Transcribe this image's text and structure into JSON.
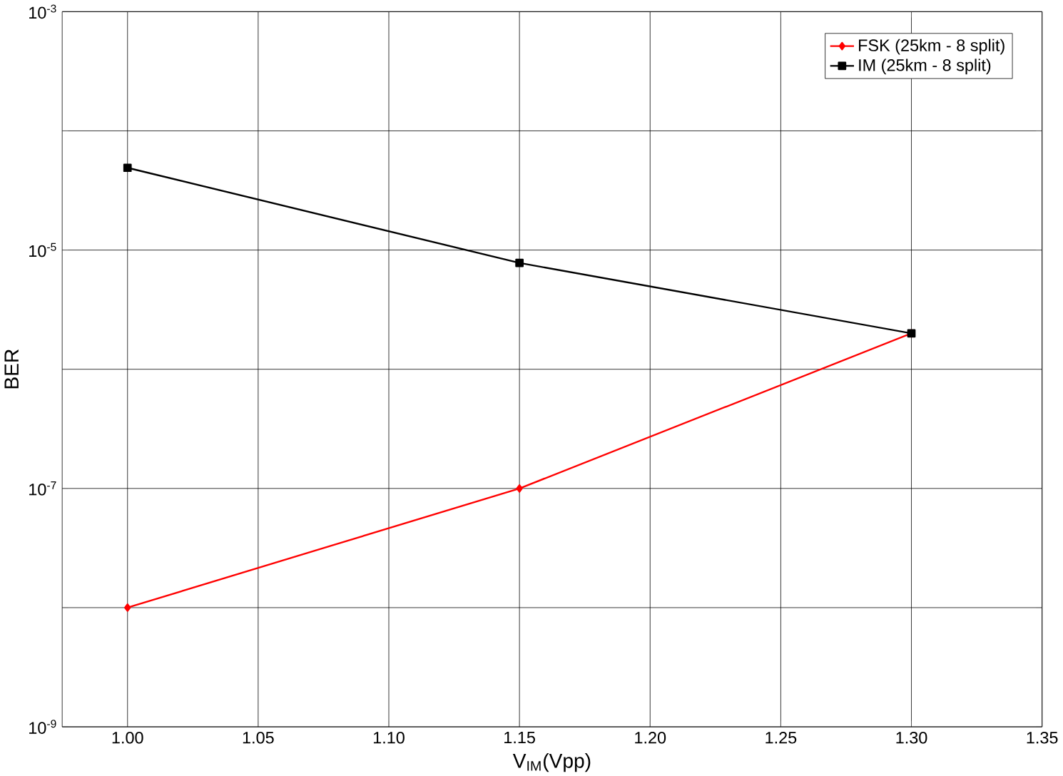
{
  "chart_data": {
    "type": "line",
    "xlabel": "V$_{IM}$(Vpp)",
    "ylabel": "BER",
    "log": "y",
    "grid": true,
    "legend": "top right",
    "line_style": "solid",
    "x": [
      1.0,
      1.15,
      1.3
    ],
    "series": [
      {
        "name": "FSK (25km - 8 split)",
        "color": "#ff0000",
        "marker": "diamond",
        "values": [
          1e-08,
          1e-07,
          2e-06
        ]
      },
      {
        "name": "IM (25km - 8 split)",
        "color": "#000000",
        "marker": "square",
        "values": [
          4.9e-05,
          7.8e-06,
          2e-06
        ]
      }
    ],
    "xlim": [
      0.975,
      1.35
    ],
    "xticks": [
      {
        "value": 1.0,
        "label": "1.00"
      },
      {
        "value": 1.05,
        "label": "1.05"
      },
      {
        "value": 1.1,
        "label": "1.10"
      },
      {
        "value": 1.15,
        "label": "1.15"
      },
      {
        "value": 1.2,
        "label": "1.20"
      },
      {
        "value": 1.25,
        "label": "1.25"
      },
      {
        "value": 1.3,
        "label": "1.30"
      },
      {
        "value": 1.35,
        "label": "1.35"
      }
    ],
    "ylim": [
      1e-09,
      0.001
    ],
    "yticks": [
      {
        "value": 1e-09,
        "label": "10$^{-9}$"
      },
      {
        "value": 1e-08,
        "label": null
      },
      {
        "value": 1e-07,
        "label": "10$^{-7}$"
      },
      {
        "value": 1e-06,
        "label": null
      },
      {
        "value": 1e-05,
        "label": "10$^{-5}$"
      },
      {
        "value": 0.0001,
        "label": null
      },
      {
        "value": 0.001,
        "label": "10$^{-3}$"
      }
    ]
  }
}
